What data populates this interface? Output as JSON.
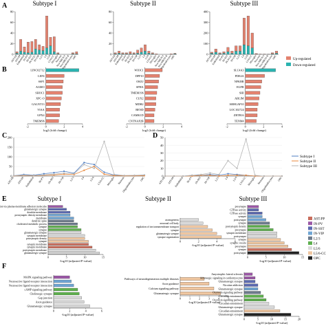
{
  "panel_letters": [
    "A",
    "B",
    "C",
    "D",
    "E",
    "F"
  ],
  "cell_types": [
    "AST-FB",
    "AST-PP",
    "Endothelial",
    "IN-PV",
    "IN-SST",
    "IN-SV2C",
    "IN-VIP",
    "L2/3",
    "L4",
    "L5/6",
    "L5/6-CC",
    "Microglia",
    "Neu-mat",
    "Neu-NRGN-I",
    "Neu-NRGN-II",
    "Oligodendrocytes",
    "OPC"
  ],
  "cell_types_C": [
    "AST-FB",
    "AST-PP",
    "Endothelial",
    "IN-PV",
    "IN-SST",
    "IN-VIP",
    "L2/3",
    "L4",
    "L5/6",
    "L5/6-CC",
    "Microglia",
    "Neurons",
    "Oligodendrocytes",
    "OPC"
  ],
  "legend_AB": {
    "up": "Up-regulated",
    "down": "Down-regulated",
    "up_color": "#e3826f",
    "down_color": "#2ab3b0"
  },
  "legend_CD": {
    "entries": [
      {
        "name": "Subtype I",
        "color": "#4d7cc0"
      },
      {
        "name": "Subtype II",
        "color": "#e8873a"
      },
      {
        "name": "Subtype III",
        "color": "#b5b5b5"
      }
    ]
  },
  "legend_E": {
    "entries": [
      {
        "name": "AST-PP",
        "color": "#c96d5c"
      },
      {
        "name": "IN-PV",
        "color": "#9b58a6"
      },
      {
        "name": "IN-SST",
        "color": "#5c6ab0"
      },
      {
        "name": "IN-VIP",
        "color": "#6fa5d3"
      },
      {
        "name": "L2/3",
        "color": "#6c7a8c"
      },
      {
        "name": "L4",
        "color": "#5fb04f"
      },
      {
        "name": "L5/6",
        "color": "#d9d9d9"
      },
      {
        "name": "L5/6-CC",
        "color": "#efc6a0"
      },
      {
        "name": "OPC",
        "color": "#222222"
      }
    ]
  },
  "chart_data": [
    {
      "type": "bar",
      "panel": "A",
      "title": "Subtype I",
      "stacked": true,
      "ylim": [
        0,
        80
      ],
      "yticks": [
        0,
        20,
        40,
        60,
        80
      ],
      "categories": [
        "AST-FB",
        "AST-PP",
        "Endothelial",
        "IN-PV",
        "IN-SST",
        "IN-SV2C",
        "IN-VIP",
        "L2/3",
        "L4",
        "L5/6",
        "L5/6-CC",
        "Microglia",
        "Neu-mat",
        "Neu-NRGN-I",
        "Neu-NRGN-II",
        "Oligodendrocytes",
        "OPC"
      ],
      "series": [
        {
          "name": "Down-regulated",
          "values": [
            2,
            6,
            4,
            3,
            4,
            10,
            8,
            7,
            12,
            16,
            5,
            1,
            0,
            0,
            0,
            1,
            1
          ]
        },
        {
          "name": "Up-regulated",
          "values": [
            3,
            22,
            10,
            20,
            20,
            18,
            10,
            8,
            60,
            16,
            28,
            2,
            0,
            0,
            0,
            2,
            4
          ]
        }
      ]
    },
    {
      "type": "bar",
      "panel": "A",
      "title": "Subtype II",
      "stacked": true,
      "ylim": [
        0,
        80
      ],
      "yticks": [
        0,
        20,
        40,
        60,
        80
      ],
      "categories": [
        "AST-FB",
        "AST-PP",
        "Endothelial",
        "IN-PV",
        "IN-SST",
        "IN-SV2C",
        "IN-VIP",
        "L2/3",
        "L4",
        "L5/6",
        "L5/6-CC",
        "Microglia",
        "Neu-mat",
        "Neu-NRGN-I",
        "Neu-NRGN-II",
        "Oligodendrocytes",
        "OPC"
      ],
      "series": [
        {
          "name": "Down-regulated",
          "values": [
            1,
            2,
            1,
            1,
            1,
            1,
            2,
            4,
            6,
            2,
            1,
            0,
            0,
            0,
            0,
            0,
            1
          ]
        },
        {
          "name": "Up-regulated",
          "values": [
            2,
            4,
            2,
            2,
            4,
            2,
            6,
            8,
            12,
            4,
            2,
            1,
            0,
            0,
            0,
            1,
            1
          ]
        }
      ]
    },
    {
      "type": "bar",
      "panel": "A",
      "title": "Subtype III",
      "stacked": true,
      "ylim": [
        0,
        400
      ],
      "yticks": [
        0,
        100,
        200,
        300,
        400
      ],
      "categories": [
        "AST-FB",
        "AST-PP",
        "Endothelial",
        "IN-PV",
        "IN-SST",
        "IN-SV2C",
        "IN-VIP",
        "L2/3",
        "L4",
        "L5/6",
        "L5/6-CC",
        "Microglia",
        "Neu-mat",
        "Neu-NRGN-I",
        "Neu-NRGN-II",
        "Oligodendrocytes",
        "OPC"
      ],
      "series": [
        {
          "name": "Down-regulated",
          "values": [
            10,
            20,
            6,
            10,
            25,
            10,
            30,
            30,
            90,
            80,
            60,
            2,
            1,
            1,
            0,
            5,
            10
          ]
        },
        {
          "name": "Up-regulated",
          "values": [
            10,
            30,
            8,
            15,
            40,
            20,
            50,
            50,
            250,
            280,
            140,
            5,
            2,
            2,
            1,
            10,
            20
          ]
        }
      ]
    },
    {
      "type": "bar",
      "panel": "B",
      "orientation": "horizontal",
      "xlabel": "log2 (fold change)",
      "xlim": [
        -2,
        4
      ],
      "xticks": [
        -2,
        0,
        2,
        4
      ],
      "categories": [
        "LINC02712",
        "LEP4",
        "SSP1",
        "AGMO",
        "SHOC1",
        "XPC-O",
        "GALNT13",
        "VIAA",
        "GPX4",
        "TMEM96"
      ],
      "values": [
        3.6,
        2.0,
        1.9,
        1.8,
        1.8,
        1.7,
        1.6,
        1.5,
        1.5,
        1.4
      ],
      "colors": [
        "#2ab3b0",
        "#e3826f",
        "#e3826f",
        "#e3826f",
        "#e3826f",
        "#e3826f",
        "#e3826f",
        "#e3826f",
        "#e3826f",
        "#e3826f"
      ]
    },
    {
      "type": "bar",
      "panel": "B",
      "orientation": "horizontal",
      "xlabel": "log2 (fold change)",
      "xlim": [
        -2,
        4
      ],
      "xticks": [
        -2,
        0,
        2,
        4
      ],
      "categories": [
        "WIOC1",
        "DPP10",
        "OKIU",
        "SPHA",
        "TMEM196",
        "CUX2",
        "MDH2",
        "BEND",
        "CAMK1D",
        "CNTNAP2B"
      ],
      "values": [
        1.9,
        1.6,
        1.5,
        1.4,
        1.3,
        1.2,
        1.2,
        1.1,
        1.0,
        1.0
      ],
      "colors": [
        "#e3826f",
        "#e3826f",
        "#e3826f",
        "#e3826f",
        "#e3826f",
        "#e3826f",
        "#e3826f",
        "#e3826f",
        "#e3826f",
        "#e3826f"
      ]
    },
    {
      "type": "bar",
      "panel": "B",
      "orientation": "horizontal",
      "xlabel": "log2 (fold change)",
      "xlim": [
        -2,
        4
      ],
      "xticks": [
        -2,
        0,
        2,
        4
      ],
      "categories": [
        "SLC4A3",
        "PDE4A",
        "NFKBR",
        "EGFR",
        "SHI",
        "ABLIM",
        "ARHGAP10",
        "LOC102724",
        "ZBTB16",
        "TENM4"
      ],
      "values": [
        3.3,
        2.1,
        1.8,
        1.7,
        1.6,
        1.5,
        1.4,
        1.3,
        1.3,
        1.2
      ],
      "colors": [
        "#2ab3b0",
        "#e3826f",
        "#e3826f",
        "#e3826f",
        "#e3826f",
        "#e3826f",
        "#e3826f",
        "#e3826f",
        "#e3826f",
        "#e3826f"
      ]
    },
    {
      "type": "line",
      "panel": "C",
      "ylim": [
        0,
        200
      ],
      "yticks": [
        0,
        50,
        100,
        150,
        200
      ],
      "categories": [
        "AST-FB",
        "AST-PP",
        "Endothelial",
        "IN-PV",
        "IN-SST",
        "IN-VIP",
        "L2/3",
        "L4",
        "L5/6",
        "L5/6-CC",
        "Microglia",
        "Neurons",
        "Oligodendrocytes",
        "OPC"
      ],
      "series": [
        {
          "name": "Subtype I",
          "values": [
            2,
            8,
            5,
            12,
            18,
            25,
            15,
            70,
            60,
            20,
            5,
            2,
            3,
            5
          ]
        },
        {
          "name": "Subtype II",
          "values": [
            1,
            3,
            2,
            4,
            6,
            10,
            8,
            30,
            50,
            10,
            2,
            1,
            1,
            2
          ]
        },
        {
          "name": "Subtype III",
          "values": [
            2,
            5,
            3,
            6,
            10,
            15,
            12,
            60,
            40,
            180,
            8,
            3,
            4,
            6
          ]
        }
      ]
    },
    {
      "type": "line",
      "panel": "D",
      "ylim": [
        0,
        50
      ],
      "yticks": [
        0,
        10,
        20,
        30,
        40,
        50
      ],
      "categories": [
        "AST-FB",
        "AST-PP",
        "Endothelial",
        "IN-PV",
        "IN-SST",
        "IN-VIP",
        "L2/3",
        "L4",
        "L5/6",
        "L5/6-CC",
        "Microglia",
        "Neurons",
        "Oligodendrocytes",
        "OPC"
      ],
      "series": [
        {
          "name": "Subtype I",
          "values": [
            0,
            0,
            0,
            1,
            1,
            2,
            1,
            3,
            2,
            1,
            0,
            0,
            0,
            0
          ]
        },
        {
          "name": "Subtype II",
          "values": [
            0,
            0,
            0,
            0,
            1,
            1,
            0,
            1,
            1,
            1,
            0,
            0,
            0,
            0
          ]
        },
        {
          "name": "Subtype III",
          "values": [
            0,
            0,
            0,
            1,
            2,
            4,
            2,
            20,
            10,
            48,
            1,
            0,
            0,
            0
          ]
        }
      ]
    },
    {
      "type": "bar",
      "panel": "E",
      "orientation": "horizontal",
      "title": "Subtype I",
      "xlabel": "-log10 (adjusted P-value)",
      "xlim": [
        0,
        15
      ],
      "xticks": [
        0,
        5,
        10,
        15
      ],
      "categories": [
        "cell-cell adhesion via plasma-membrane adhesion molecules",
        "glutamatergic synapse",
        "dendrite membrane",
        "postsynaptic density membrane",
        "membrane",
        "dendritic spine",
        "cholesterol metabolic process",
        "synapse",
        "synapse",
        "glutamatergic synapse",
        "synaptic membrane",
        "postsynaptic density",
        "synapse",
        "synaptic membrane",
        "synaptic membrane",
        "postsynaptic membrane",
        "glutamatergic synapse"
      ],
      "values": [
        4,
        5,
        6,
        6,
        7,
        7,
        8,
        8,
        9,
        9,
        10,
        10,
        11,
        11,
        12,
        13,
        14
      ],
      "colors": [
        "#9b58a6",
        "#5c6ab0",
        "#5c6ab0",
        "#6fa5d3",
        "#6fa5d3",
        "#6c7a8c",
        "#6c7a8c",
        "#5fb04f",
        "#5fb04f",
        "#d9d9d9",
        "#d9d9d9",
        "#efc6a0",
        "#efc6a0",
        "#c96d5c",
        "#c96d5c",
        "#d9d9d9",
        "#d9d9d9"
      ]
    },
    {
      "type": "bar",
      "panel": "E",
      "orientation": "horizontal",
      "title": "Subtype II",
      "xlabel": "-log10 (adjusted P-value)",
      "xlim": [
        0,
        6
      ],
      "xticks": [
        0,
        2,
        4,
        6
      ],
      "categories": [
        "axonogenesis",
        "neuronal cell body",
        "regulation of ion transmembrane transport",
        "synapse",
        "glutamatergic synapse",
        "synapse organization"
      ],
      "values": [
        2.0,
        2.5,
        3.0,
        3.5,
        4.0,
        4.5
      ],
      "colors": [
        "#d9d9d9",
        "#d9d9d9",
        "#efc6a0",
        "#efc6a0",
        "#efc6a0",
        "#efc6a0"
      ]
    },
    {
      "type": "bar",
      "panel": "E",
      "orientation": "horizontal",
      "title": "Subtype III",
      "xlabel": "-log10 (adjusted P-value)",
      "xlim": [
        0,
        15
      ],
      "xticks": [
        0,
        5,
        10,
        15
      ],
      "categories": [
        "presynapse",
        "GTPase activity",
        "GTPase activity",
        "synapse",
        "postsynapse",
        "synapse",
        "postsynaptic density",
        "presynapse",
        "synaptic membrane",
        "postsynapse",
        "synapse",
        "synaptic vesicle",
        "presynapse",
        "synapse",
        "postsynapse"
      ],
      "values": [
        3,
        3,
        4,
        4,
        5,
        6,
        6,
        7,
        8,
        8,
        9,
        10,
        11,
        12,
        14
      ],
      "colors": [
        "#9b58a6",
        "#5c6ab0",
        "#5c6ab0",
        "#6fa5d3",
        "#6fa5d3",
        "#6c7a8c",
        "#5fb04f",
        "#5fb04f",
        "#d9d9d9",
        "#d9d9d9",
        "#efc6a0",
        "#efc6a0",
        "#efc6a0",
        "#c96d5c",
        "#222222"
      ]
    },
    {
      "type": "bar",
      "panel": "F",
      "orientation": "horizontal",
      "xlabel": "-log10 (adjusted P-value)",
      "xlim": [
        0,
        6
      ],
      "xticks": [
        0,
        2,
        4,
        6
      ],
      "categories": [
        "MAPK signaling pathway",
        "Neuroactive ligand-receptor interaction",
        "Neuroactive ligand-receptor interaction",
        "cAMP signaling pathway",
        "Cholinergic synapse",
        "Gap junction",
        "Axon guidance",
        "Glutamatergic synapse"
      ],
      "values": [
        2.0,
        2.2,
        2.5,
        3.0,
        3.2,
        3.5,
        3.8,
        4.5
      ],
      "colors": [
        "#9b58a6",
        "#6fa5d3",
        "#6fa5d3",
        "#5fb04f",
        "#5fb04f",
        "#d9d9d9",
        "#d9d9d9",
        "#d9d9d9"
      ]
    },
    {
      "type": "bar",
      "panel": "F",
      "orientation": "horizontal",
      "xlabel": "-log10 (adjusted P-value)",
      "xlim": [
        0,
        5
      ],
      "xticks": [
        0,
        1,
        2,
        3,
        4,
        5
      ],
      "categories": [
        "Pathways of neurodegeneration multiple diseases",
        "Axon guidance",
        "Calcium signaling pathway",
        "Glutamatergic synapse"
      ],
      "values": [
        2.5,
        3.0,
        3.5,
        4.2
      ],
      "colors": [
        "#efc6a0",
        "#efc6a0",
        "#efc6a0",
        "#efc6a0"
      ]
    },
    {
      "type": "bar",
      "panel": "F",
      "orientation": "horizontal",
      "xlabel": "-log10 (adjusted P-value)",
      "xlim": [
        0,
        20
      ],
      "xticks": [
        0,
        5,
        10,
        15,
        20
      ],
      "categories": [
        "Amyotrophic lateral sclerosis",
        "Adrenergic signaling in cardiomyocytes",
        "Glutamatergic synapse",
        "Nicotine addiction",
        "Glutamatergic synapse",
        "Oxytocin signaling pathway",
        "Circadian entrainment",
        "Oxytocin signaling pathway",
        "Circadian entrainment",
        "Glutamatergic synapse",
        "Circadian entrainment",
        "Glutamatergic synapse"
      ],
      "values": [
        3,
        4,
        4,
        5,
        5,
        6,
        7,
        8,
        9,
        11,
        13,
        17
      ],
      "colors": [
        "#9b58a6",
        "#9b58a6",
        "#5c6ab0",
        "#5c6ab0",
        "#6fa5d3",
        "#6c7a8c",
        "#5fb04f",
        "#5fb04f",
        "#d9d9d9",
        "#d9d9d9",
        "#efc6a0",
        "#222222"
      ]
    }
  ]
}
